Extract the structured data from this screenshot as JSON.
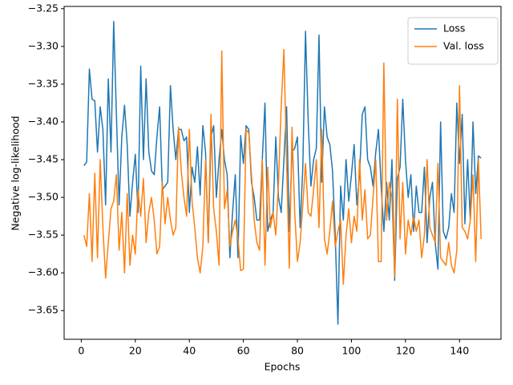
{
  "chart_data": {
    "type": "line",
    "xlabel": "Epochs",
    "ylabel": "Negative log-likelihood",
    "x": [
      1,
      2,
      3,
      4,
      5,
      6,
      7,
      8,
      9,
      10,
      11,
      12,
      13,
      14,
      15,
      16,
      17,
      18,
      19,
      20,
      21,
      22,
      23,
      24,
      25,
      26,
      27,
      28,
      29,
      30,
      31,
      32,
      33,
      34,
      35,
      36,
      37,
      38,
      39,
      40,
      41,
      42,
      43,
      44,
      45,
      46,
      47,
      48,
      49,
      50,
      51,
      52,
      53,
      54,
      55,
      56,
      57,
      58,
      59,
      60,
      61,
      62,
      63,
      64,
      65,
      66,
      67,
      68,
      69,
      70,
      71,
      72,
      73,
      74,
      75,
      76,
      77,
      78,
      79,
      80,
      81,
      82,
      83,
      84,
      85,
      86,
      87,
      88,
      89,
      90,
      91,
      92,
      93,
      94,
      95,
      96,
      97,
      98,
      99,
      100,
      101,
      102,
      103,
      104,
      105,
      106,
      107,
      108,
      109,
      110,
      111,
      112,
      113,
      114,
      115,
      116,
      117,
      118,
      119,
      120,
      121,
      122,
      123,
      124,
      125,
      126,
      127,
      128,
      129,
      130,
      131,
      132,
      133,
      134,
      135,
      136,
      137,
      138,
      139,
      140,
      141,
      142,
      143,
      144,
      145,
      146,
      147,
      148
    ],
    "series": [
      {
        "name": "Loss",
        "color": "#1f77b4",
        "values": [
          -3.458,
          -3.453,
          -3.33,
          -3.37,
          -3.372,
          -3.44,
          -3.38,
          -3.41,
          -3.51,
          -3.343,
          -3.44,
          -3.267,
          -3.39,
          -3.51,
          -3.42,
          -3.378,
          -3.43,
          -3.525,
          -3.48,
          -3.443,
          -3.52,
          -3.326,
          -3.45,
          -3.343,
          -3.44,
          -3.465,
          -3.47,
          -3.42,
          -3.38,
          -3.49,
          -3.485,
          -3.48,
          -3.352,
          -3.41,
          -3.45,
          -3.41,
          -3.41,
          -3.425,
          -3.42,
          -3.52,
          -3.46,
          -3.48,
          -3.433,
          -3.497,
          -3.405,
          -3.44,
          -3.56,
          -3.42,
          -3.405,
          -3.5,
          -3.45,
          -3.41,
          -3.45,
          -3.47,
          -3.58,
          -3.52,
          -3.47,
          -3.58,
          -3.418,
          -3.455,
          -3.405,
          -3.41,
          -3.48,
          -3.5,
          -3.53,
          -3.53,
          -3.45,
          -3.375,
          -3.545,
          -3.53,
          -3.52,
          -3.42,
          -3.5,
          -3.52,
          -3.45,
          -3.38,
          -3.545,
          -3.44,
          -3.435,
          -3.42,
          -3.54,
          -3.46,
          -3.28,
          -3.4,
          -3.485,
          -3.45,
          -3.435,
          -3.285,
          -3.48,
          -3.38,
          -3.42,
          -3.43,
          -3.465,
          -3.55,
          -3.668,
          -3.485,
          -3.53,
          -3.45,
          -3.505,
          -3.47,
          -3.43,
          -3.51,
          -3.47,
          -3.39,
          -3.38,
          -3.45,
          -3.46,
          -3.485,
          -3.44,
          -3.41,
          -3.485,
          -3.545,
          -3.48,
          -3.53,
          -3.45,
          -3.61,
          -3.475,
          -3.46,
          -3.37,
          -3.45,
          -3.5,
          -3.47,
          -3.545,
          -3.485,
          -3.52,
          -3.52,
          -3.46,
          -3.56,
          -3.5,
          -3.48,
          -3.56,
          -3.595,
          -3.4,
          -3.545,
          -3.555,
          -3.54,
          -3.495,
          -3.52,
          -3.375,
          -3.455,
          -3.39,
          -3.535,
          -3.45,
          -3.53,
          -3.4,
          -3.495,
          -3.445,
          -3.448
        ]
      },
      {
        "name": "Val. loss",
        "color": "#ff7f0e",
        "values": [
          -3.55,
          -3.565,
          -3.495,
          -3.585,
          -3.468,
          -3.58,
          -3.45,
          -3.54,
          -3.607,
          -3.56,
          -3.515,
          -3.505,
          -3.47,
          -3.57,
          -3.52,
          -3.6,
          -3.495,
          -3.59,
          -3.55,
          -3.575,
          -3.49,
          -3.525,
          -3.475,
          -3.56,
          -3.52,
          -3.5,
          -3.53,
          -3.575,
          -3.565,
          -3.48,
          -3.535,
          -3.5,
          -3.53,
          -3.55,
          -3.54,
          -3.407,
          -3.465,
          -3.5,
          -3.525,
          -3.41,
          -3.505,
          -3.54,
          -3.58,
          -3.6,
          -3.565,
          -3.45,
          -3.56,
          -3.39,
          -3.515,
          -3.545,
          -3.59,
          -3.306,
          -3.515,
          -3.49,
          -3.565,
          -3.545,
          -3.53,
          -3.555,
          -3.597,
          -3.595,
          -3.41,
          -3.415,
          -3.47,
          -3.53,
          -3.56,
          -3.57,
          -3.45,
          -3.59,
          -3.46,
          -3.54,
          -3.52,
          -3.55,
          -3.48,
          -3.38,
          -3.304,
          -3.455,
          -3.594,
          -3.407,
          -3.52,
          -3.585,
          -3.56,
          -3.51,
          -3.455,
          -3.52,
          -3.525,
          -3.49,
          -3.45,
          -3.54,
          -3.41,
          -3.555,
          -3.575,
          -3.545,
          -3.505,
          -3.565,
          -3.545,
          -3.53,
          -3.615,
          -3.55,
          -3.515,
          -3.56,
          -3.525,
          -3.545,
          -3.45,
          -3.53,
          -3.49,
          -3.555,
          -3.55,
          -3.5,
          -3.45,
          -3.585,
          -3.585,
          -3.322,
          -3.53,
          -3.48,
          -3.5,
          -3.605,
          -3.37,
          -3.555,
          -3.48,
          -3.575,
          -3.53,
          -3.55,
          -3.525,
          -3.545,
          -3.53,
          -3.58,
          -3.55,
          -3.45,
          -3.54,
          -3.55,
          -3.56,
          -3.455,
          -3.58,
          -3.585,
          -3.59,
          -3.56,
          -3.59,
          -3.6,
          -3.57,
          -3.352,
          -3.54,
          -3.545,
          -3.555,
          -3.53,
          -3.47,
          -3.585,
          -3.45,
          -3.555
        ]
      }
    ],
    "xlim": [
      -6.35,
      155.35
    ],
    "ylim": [
      -3.688,
      -3.247
    ],
    "xticks": [
      0,
      20,
      40,
      60,
      80,
      100,
      120,
      140
    ],
    "yticks": [
      {
        "value": -3.65,
        "label": "−3.65"
      },
      {
        "value": -3.6,
        "label": "−3.60"
      },
      {
        "value": -3.55,
        "label": "−3.55"
      },
      {
        "value": -3.5,
        "label": "−3.50"
      },
      {
        "value": -3.45,
        "label": "−3.45"
      },
      {
        "value": -3.4,
        "label": "−3.40"
      },
      {
        "value": -3.35,
        "label": "−3.35"
      },
      {
        "value": -3.3,
        "label": "−3.30"
      },
      {
        "value": -3.25,
        "label": "−3.25"
      }
    ],
    "legend": "upper right",
    "grid": false
  }
}
